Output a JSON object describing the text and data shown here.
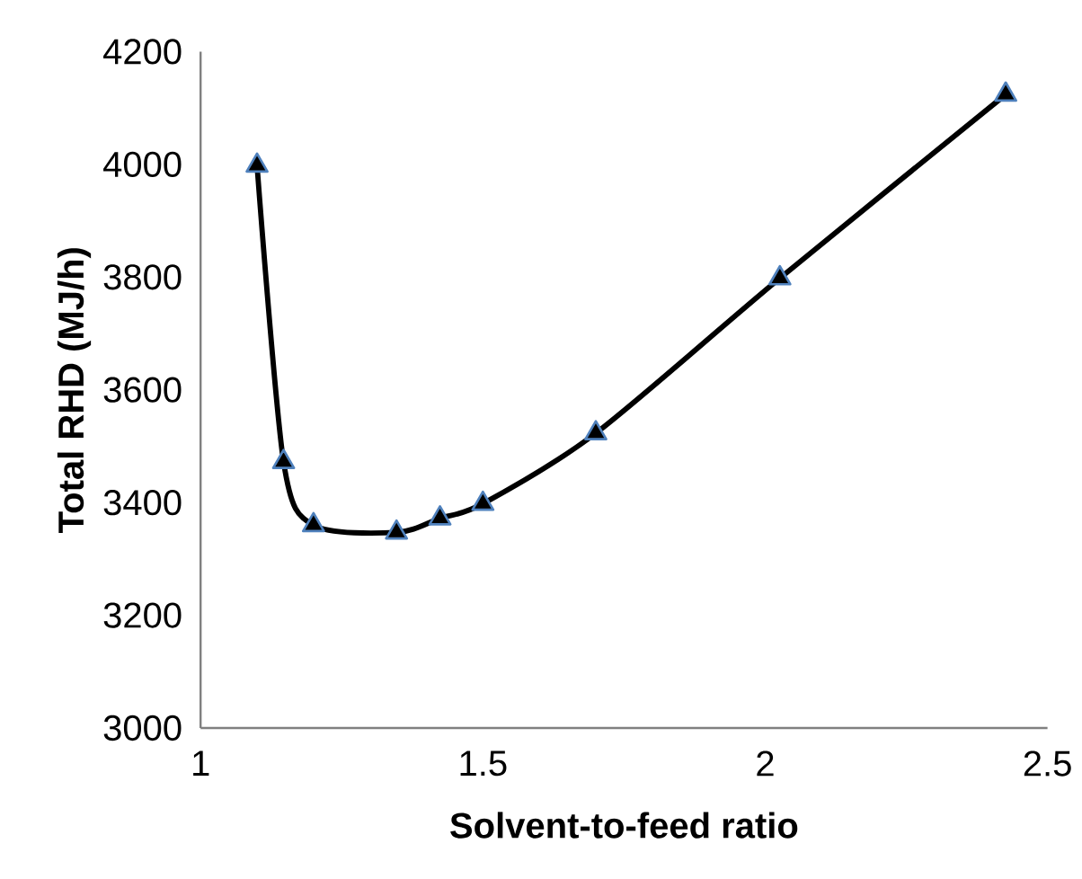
{
  "chart_data": {
    "type": "line",
    "xlabel": "Solvent-to-feed ratio",
    "ylabel": "Total RHD (MJ/h)",
    "x": [
      1.1,
      1.147,
      1.2,
      1.347,
      1.424,
      1.5,
      1.7,
      2.026,
      2.426
    ],
    "series": [
      {
        "color": "#000000",
        "values": [
          3998,
          3472,
          3360,
          3347,
          3372,
          3398,
          3523,
          3798,
          4124
        ]
      }
    ],
    "xlim": [
      1,
      2.5
    ],
    "ylim": [
      3000,
      4200
    ],
    "xticks": [
      1,
      1.5,
      2,
      2.5
    ],
    "yticks": [
      3000,
      3200,
      3400,
      3600,
      3800,
      4000,
      4200
    ],
    "grid": false,
    "marker": "triangle",
    "line_style": "solid"
  }
}
